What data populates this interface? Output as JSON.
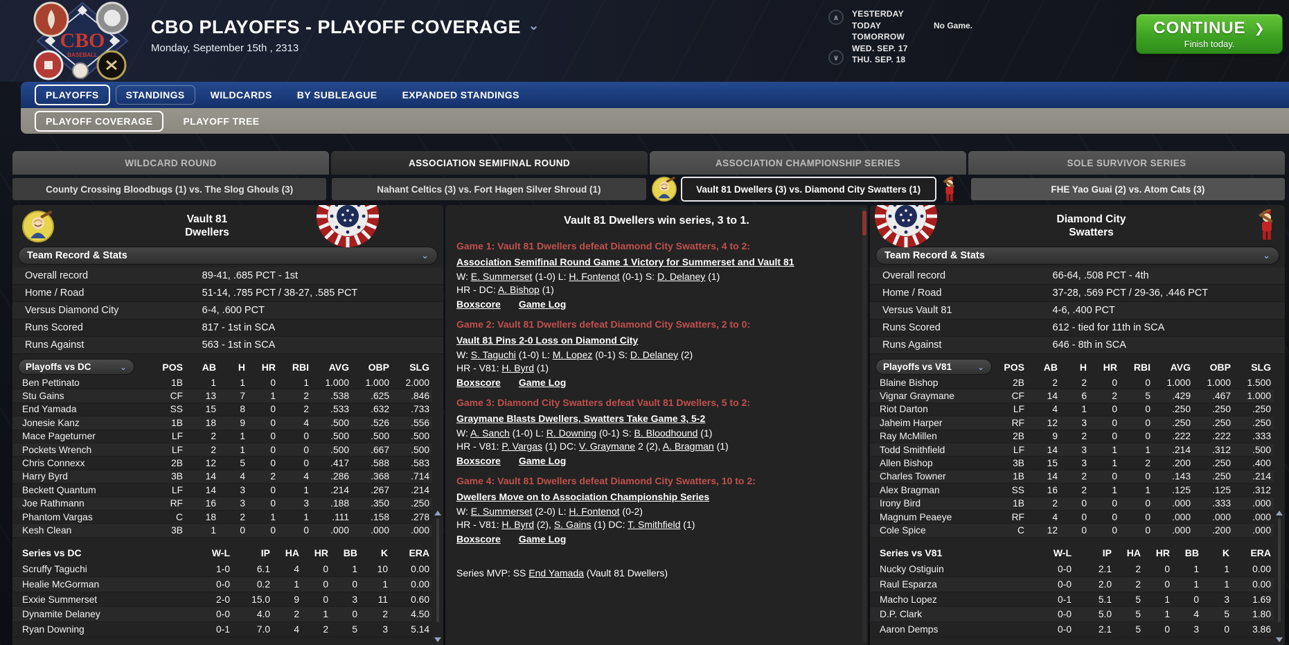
{
  "header": {
    "title": "CBO PLAYOFFS - PLAYOFF COVERAGE",
    "date": "Monday, September 15th , 2313",
    "schedule": [
      {
        "label": "YESTERDAY",
        "note": ""
      },
      {
        "label": "TODAY",
        "note": "No Game."
      },
      {
        "label": "TOMORROW",
        "note": ""
      },
      {
        "label": "WED. SEP. 17",
        "note": ""
      },
      {
        "label": "THU. SEP. 18",
        "note": ""
      }
    ],
    "continue_label": "CONTINUE",
    "continue_sub": "Finish today.",
    "continue_color": "#3fa423"
  },
  "nav": {
    "tabs": [
      {
        "label": "PLAYOFFS",
        "style": "active"
      },
      {
        "label": "STANDINGS",
        "style": "soft"
      },
      {
        "label": "WILDCARDS",
        "style": ""
      },
      {
        "label": "BY SUBLEAGUE",
        "style": ""
      },
      {
        "label": "EXPANDED STANDINGS",
        "style": ""
      }
    ],
    "bar_color": "#16316b"
  },
  "subnav": {
    "tabs": [
      {
        "label": "PLAYOFF COVERAGE",
        "style": "active"
      },
      {
        "label": "PLAYOFF TREE",
        "style": ""
      }
    ],
    "bar_color": "#8a887f"
  },
  "rounds": [
    {
      "label": "WILDCARD ROUND",
      "active": false
    },
    {
      "label": "ASSOCIATION SEMIFINAL ROUND",
      "active": true
    },
    {
      "label": "ASSOCIATION CHAMPIONSHIP SERIES",
      "active": false
    },
    {
      "label": "SOLE SURVIVOR SERIES",
      "active": false
    }
  ],
  "series_tabs": [
    {
      "label": "County Crossing Bloodbugs (1) vs. The Slog Ghouls (3)",
      "active": false,
      "alt": false
    },
    {
      "label": "Nahant Celtics (3) vs. Fort Hagen Silver Shroud (1)",
      "active": false,
      "alt": false
    },
    {
      "label": "Vault 81 Dwellers (3) vs. Diamond City Swatters (1)",
      "active": true,
      "alt": false
    },
    {
      "label": "FHE Yao Guai (2) vs. Atom Cats (3)",
      "active": false,
      "alt": true
    }
  ],
  "left_panel": {
    "team_line1": "Vault 81",
    "team_line2": "Dwellers",
    "record_header": "Team Record & Stats",
    "records": [
      {
        "label": "Overall record",
        "value": "89-41, .685 PCT - 1st"
      },
      {
        "label": "Home / Road",
        "value": "51-14, .785 PCT / 38-27, .585 PCT"
      },
      {
        "label": "Versus Diamond City",
        "value": "6-4, .600 PCT"
      },
      {
        "label": "Runs Scored",
        "value": "817 - 1st in SCA"
      },
      {
        "label": "Runs Against",
        "value": "563 - 1st in SCA"
      }
    ],
    "batting": {
      "selector": "Playoffs vs DC",
      "columns": [
        "POS",
        "AB",
        "H",
        "HR",
        "RBI",
        "AVG",
        "OBP",
        "SLG"
      ],
      "rows": [
        [
          "Ben Pettinato",
          "1B",
          "1",
          "1",
          "0",
          "1",
          "1.000",
          "1.000",
          "2.000"
        ],
        [
          "Stu Gains",
          "CF",
          "13",
          "7",
          "1",
          "2",
          ".538",
          ".625",
          ".846"
        ],
        [
          "End Yamada",
          "SS",
          "15",
          "8",
          "0",
          "2",
          ".533",
          ".632",
          ".733"
        ],
        [
          "Jonesie Kanz",
          "1B",
          "18",
          "9",
          "0",
          "4",
          ".500",
          ".526",
          ".556"
        ],
        [
          "Mace Pageturner",
          "LF",
          "2",
          "1",
          "0",
          "0",
          ".500",
          ".500",
          ".500"
        ],
        [
          "Pockets Wrench",
          "LF",
          "2",
          "1",
          "0",
          "0",
          ".500",
          ".667",
          ".500"
        ],
        [
          "Chris Connexx",
          "2B",
          "12",
          "5",
          "0",
          "0",
          ".417",
          ".588",
          ".583"
        ],
        [
          "Harry Byrd",
          "3B",
          "14",
          "4",
          "2",
          "4",
          ".286",
          ".368",
          ".714"
        ],
        [
          "Beckett Quantum",
          "LF",
          "14",
          "3",
          "0",
          "1",
          ".214",
          ".267",
          ".214"
        ],
        [
          "Joe Rathmann",
          "RF",
          "16",
          "3",
          "0",
          "3",
          ".188",
          ".350",
          ".250"
        ],
        [
          "Phantom Vargas",
          "C",
          "18",
          "2",
          "1",
          "1",
          ".111",
          ".158",
          ".278"
        ],
        [
          "Kesh Clean",
          "3B",
          "1",
          "0",
          "0",
          "0",
          ".000",
          ".000",
          ".000"
        ]
      ]
    },
    "pitching": {
      "header": "Series vs DC",
      "columns": [
        "W-L",
        "IP",
        "HA",
        "HR",
        "BB",
        "K",
        "ERA"
      ],
      "rows": [
        [
          "Scruffy Taguchi",
          "1-0",
          "6.1",
          "4",
          "0",
          "1",
          "10",
          "0.00"
        ],
        [
          "Healie McGorman",
          "0-0",
          "0.2",
          "1",
          "0",
          "0",
          "1",
          "0.00"
        ],
        [
          "Exxie Summerset",
          "2-0",
          "15.0",
          "9",
          "0",
          "3",
          "11",
          "0.60"
        ],
        [
          "Dynamite Delaney",
          "0-0",
          "4.0",
          "2",
          "1",
          "0",
          "2",
          "4.50"
        ],
        [
          "Ryan Downing",
          "0-1",
          "7.0",
          "4",
          "2",
          "5",
          "3",
          "5.14"
        ]
      ]
    }
  },
  "middle": {
    "title": "Vault 81 Dwellers win series, 3 to 1.",
    "accent_red": "#c0504d",
    "links": {
      "boxscore": "Boxscore",
      "gamelog": "Game Log"
    },
    "games": [
      {
        "head": "Game 1: Vault 81 Dwellers defeat Diamond City Swatters, 4 to 2:",
        "headline": "Association Semifinal Round Game 1 Victory for Summerset and Vault 81",
        "decision": [
          {
            "t": "W: "
          },
          {
            "t": "E. Summerset",
            "u": true
          },
          {
            "t": " (1-0) L: "
          },
          {
            "t": "H. Fontenot",
            "u": true
          },
          {
            "t": " (0-1) S: "
          },
          {
            "t": "D. Delaney",
            "u": true
          },
          {
            "t": " (1)"
          }
        ],
        "hr": [
          {
            "t": "HR - DC: "
          },
          {
            "t": "A. Bishop",
            "u": true
          },
          {
            "t": " (1)"
          }
        ]
      },
      {
        "head": "Game 2: Vault 81 Dwellers defeat Diamond City Swatters, 2 to 0:",
        "headline": "Vault 81 Pins 2-0 Loss on Diamond City",
        "decision": [
          {
            "t": "W: "
          },
          {
            "t": "S. Taguchi",
            "u": true
          },
          {
            "t": " (1-0) L: "
          },
          {
            "t": "M. Lopez",
            "u": true
          },
          {
            "t": " (0-1) S: "
          },
          {
            "t": "D. Delaney",
            "u": true
          },
          {
            "t": " (2)"
          }
        ],
        "hr": [
          {
            "t": "HR - V81: "
          },
          {
            "t": "H. Byrd",
            "u": true
          },
          {
            "t": " (1)"
          }
        ]
      },
      {
        "head": "Game 3: Diamond City Swatters defeat Vault 81 Dwellers, 5 to 2:",
        "headline": "Graymane Blasts Dwellers, Swatters Take Game 3, 5-2",
        "decision": [
          {
            "t": "W: "
          },
          {
            "t": "A. Sanch",
            "u": true
          },
          {
            "t": " (1-0) L: "
          },
          {
            "t": "R. Downing",
            "u": true
          },
          {
            "t": " (0-1) S: "
          },
          {
            "t": "B. Bloodhound",
            "u": true
          },
          {
            "t": " (1)"
          }
        ],
        "hr": [
          {
            "t": "HR - V81: "
          },
          {
            "t": "P. Vargas",
            "u": true
          },
          {
            "t": " (1)  DC: "
          },
          {
            "t": "V. Graymane",
            "u": true
          },
          {
            "t": " 2 (2), "
          },
          {
            "t": "A. Bragman",
            "u": true
          },
          {
            "t": " (1)"
          }
        ]
      },
      {
        "head": "Game 4: Vault 81 Dwellers defeat Diamond City Swatters, 10 to 2:",
        "headline": "Dwellers Move on to Association Championship Series",
        "decision": [
          {
            "t": "W: "
          },
          {
            "t": "E. Summerset",
            "u": true
          },
          {
            "t": " (2-0) L: "
          },
          {
            "t": "H. Fontenot",
            "u": true
          },
          {
            "t": " (0-2)"
          }
        ],
        "hr": [
          {
            "t": "HR - V81: "
          },
          {
            "t": "H. Byrd",
            "u": true
          },
          {
            "t": " (2), "
          },
          {
            "t": "S. Gains",
            "u": true
          },
          {
            "t": " (1)  DC: "
          },
          {
            "t": "T. Smithfield",
            "u": true
          },
          {
            "t": " (1)"
          }
        ]
      }
    ],
    "mvp": [
      {
        "t": "Series MVP: SS "
      },
      {
        "t": "End Yamada",
        "u": true
      },
      {
        "t": " (Vault 81 Dwellers)"
      }
    ]
  },
  "right_panel": {
    "team_line1": "Diamond City",
    "team_line2": "Swatters",
    "record_header": "Team Record & Stats",
    "records": [
      {
        "label": "Overall record",
        "value": "66-64, .508 PCT - 4th"
      },
      {
        "label": "Home / Road",
        "value": "37-28, .569 PCT / 29-36, .446 PCT"
      },
      {
        "label": "Versus Vault 81",
        "value": "4-6, .400 PCT"
      },
      {
        "label": "Runs Scored",
        "value": "612 - tied for 11th in SCA"
      },
      {
        "label": "Runs Against",
        "value": "646 - 8th in SCA"
      }
    ],
    "batting": {
      "selector": "Playoffs vs V81",
      "columns": [
        "POS",
        "AB",
        "H",
        "HR",
        "RBI",
        "AVG",
        "OBP",
        "SLG"
      ],
      "rows": [
        [
          "Blaine Bishop",
          "2B",
          "2",
          "2",
          "0",
          "0",
          "1.000",
          "1.000",
          "1.500"
        ],
        [
          "Vignar Graymane",
          "CF",
          "14",
          "6",
          "2",
          "5",
          ".429",
          ".467",
          "1.000"
        ],
        [
          "Riot Darton",
          "LF",
          "4",
          "1",
          "0",
          "0",
          ".250",
          ".250",
          ".250"
        ],
        [
          "Jaheim Harper",
          "RF",
          "12",
          "3",
          "0",
          "0",
          ".250",
          ".250",
          ".250"
        ],
        [
          "Ray McMillen",
          "2B",
          "9",
          "2",
          "0",
          "0",
          ".222",
          ".222",
          ".333"
        ],
        [
          "Todd Smithfield",
          "LF",
          "14",
          "3",
          "1",
          "1",
          ".214",
          ".312",
          ".500"
        ],
        [
          "Allen Bishop",
          "3B",
          "15",
          "3",
          "1",
          "2",
          ".200",
          ".250",
          ".400"
        ],
        [
          "Charles Towner",
          "1B",
          "14",
          "2",
          "0",
          "0",
          ".143",
          ".250",
          ".214"
        ],
        [
          "Alex Bragman",
          "SS",
          "16",
          "2",
          "1",
          "1",
          ".125",
          ".125",
          ".312"
        ],
        [
          "Irony Bird",
          "1B",
          "2",
          "0",
          "0",
          "0",
          ".000",
          ".333",
          ".000"
        ],
        [
          "Magnum Peaeye",
          "RF",
          "4",
          "0",
          "0",
          "0",
          ".000",
          ".000",
          ".000"
        ],
        [
          "Cole Spice",
          "C",
          "12",
          "0",
          "0",
          "0",
          ".000",
          ".200",
          ".000"
        ]
      ]
    },
    "pitching": {
      "header": "Series vs V81",
      "columns": [
        "W-L",
        "IP",
        "HA",
        "HR",
        "BB",
        "K",
        "ERA"
      ],
      "rows": [
        [
          "Nucky Ostiguin",
          "0-0",
          "2.1",
          "2",
          "0",
          "1",
          "1",
          "0.00"
        ],
        [
          "Raul Esparza",
          "0-0",
          "2.0",
          "2",
          "0",
          "1",
          "1",
          "0.00"
        ],
        [
          "Macho Lopez",
          "0-1",
          "5.1",
          "5",
          "1",
          "0",
          "3",
          "1.69"
        ],
        [
          "D.P. Clark",
          "0-0",
          "5.0",
          "5",
          "1",
          "4",
          "5",
          "1.80"
        ],
        [
          "Aaron Demps",
          "0-0",
          "2.1",
          "5",
          "0",
          "3",
          "0",
          "3.86"
        ]
      ]
    }
  }
}
